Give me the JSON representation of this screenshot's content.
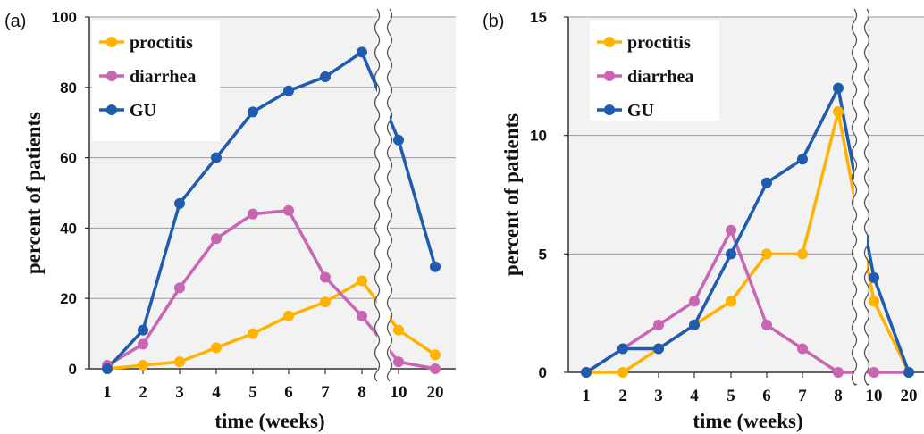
{
  "chart_data": [
    {
      "panel_label": "(a)",
      "type": "line",
      "xlabel": "time (weeks)",
      "ylabel": "percent of patients",
      "categories": [
        "1",
        "2",
        "3",
        "4",
        "5",
        "6",
        "7",
        "8",
        "10",
        "20"
      ],
      "axis_break_after": "8",
      "ylim": [
        0,
        100
      ],
      "yticks": [
        "0",
        "20",
        "40",
        "60",
        "80",
        "100"
      ],
      "grid": true,
      "legend_position": "top-left",
      "series": [
        {
          "name": "proctitis",
          "color": "#FFB300",
          "values": [
            0,
            1,
            2,
            6,
            10,
            15,
            19,
            25,
            11,
            4
          ]
        },
        {
          "name": "diarrhea",
          "color": "#C966B4",
          "values": [
            1,
            7,
            23,
            37,
            44,
            45,
            26,
            15,
            2,
            0
          ]
        },
        {
          "name": "GU",
          "color": "#1F5BAE",
          "values": [
            0,
            11,
            47,
            60,
            73,
            79,
            83,
            90,
            65,
            29
          ]
        }
      ]
    },
    {
      "panel_label": "(b)",
      "type": "line",
      "xlabel": "time (weeks)",
      "ylabel": "percent of patients",
      "categories": [
        "1",
        "2",
        "3",
        "4",
        "5",
        "6",
        "7",
        "8",
        "10",
        "20"
      ],
      "axis_break_after": "8",
      "ylim": [
        0,
        15
      ],
      "yticks": [
        "0",
        "5",
        "10",
        "15"
      ],
      "grid": true,
      "legend_position": "top-left",
      "series": [
        {
          "name": "proctitis",
          "color": "#FFB300",
          "values": [
            0,
            0,
            1,
            2,
            3,
            5,
            5,
            11,
            3,
            0
          ]
        },
        {
          "name": "diarrhea",
          "color": "#C966B4",
          "values": [
            0,
            1,
            2,
            3,
            6,
            2,
            1,
            0,
            0,
            0
          ]
        },
        {
          "name": "GU",
          "color": "#1F5BAE",
          "values": [
            0,
            1,
            1,
            2,
            5,
            8,
            9,
            12,
            4,
            0
          ]
        }
      ]
    }
  ]
}
